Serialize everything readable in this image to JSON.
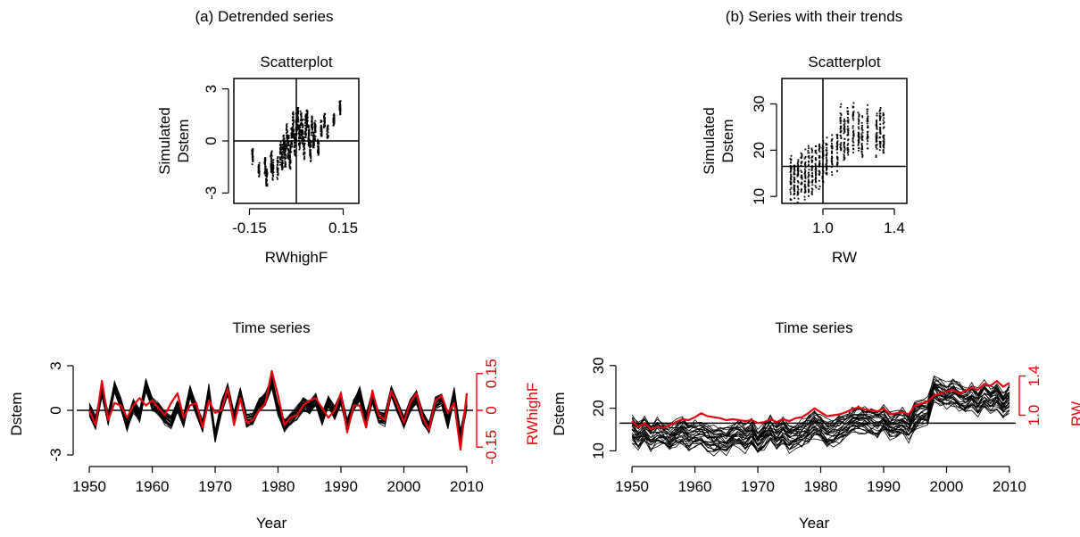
{
  "colors": {
    "simulated": "#000000",
    "observed": "#e8000b",
    "axis": "#000000"
  },
  "panel_titles": [
    "(a) Detrended series",
    "(b) Series with their trends"
  ],
  "chart_data": [
    {
      "id": "a_scatter",
      "type": "scatter",
      "title": "Scatterplot",
      "xlabel": "RWhighF",
      "ylabel_lines": [
        "Simulated",
        "Dstem"
      ],
      "xlim": [
        -0.2,
        0.2
      ],
      "ylim": [
        -3.6,
        3.6
      ],
      "xticks": [
        -0.15,
        0.15
      ],
      "xtick_labels": [
        "-0.15",
        "0.15"
      ],
      "yticks": [
        -3,
        0,
        3
      ],
      "ytick_labels": [
        "-3",
        "0",
        "3"
      ],
      "ref_lines": {
        "x": 0,
        "y": 0
      },
      "clusters": [
        {
          "x": -0.14,
          "y": -0.9,
          "range": 0.8
        },
        {
          "x": -0.12,
          "y": -1.6,
          "range": 0.8
        },
        {
          "x": -0.1,
          "y": -1.5,
          "range": 0.9
        },
        {
          "x": -0.095,
          "y": -2.1,
          "range": 0.8
        },
        {
          "x": -0.08,
          "y": -1.2,
          "range": 1.1
        },
        {
          "x": -0.075,
          "y": -1.7,
          "range": 1.0
        },
        {
          "x": -0.06,
          "y": -1.5,
          "range": 1.1
        },
        {
          "x": -0.05,
          "y": -0.6,
          "range": 1.2
        },
        {
          "x": -0.045,
          "y": -1.0,
          "range": 1.3
        },
        {
          "x": -0.04,
          "y": -0.3,
          "range": 1.2
        },
        {
          "x": -0.035,
          "y": -0.8,
          "range": 1.4
        },
        {
          "x": -0.03,
          "y": 0.3,
          "range": 1.3
        },
        {
          "x": -0.025,
          "y": -0.4,
          "range": 1.3
        },
        {
          "x": -0.02,
          "y": -1.0,
          "range": 1.4
        },
        {
          "x": -0.015,
          "y": 0.2,
          "range": 1.3
        },
        {
          "x": -0.01,
          "y": 0.9,
          "range": 1.3
        },
        {
          "x": -0.005,
          "y": -0.2,
          "range": 1.2
        },
        {
          "x": 0.0,
          "y": 0.8,
          "range": 1.4
        },
        {
          "x": 0.005,
          "y": 1.3,
          "range": 1.2
        },
        {
          "x": 0.01,
          "y": 0.3,
          "range": 1.3
        },
        {
          "x": 0.015,
          "y": 1.0,
          "range": 1.4
        },
        {
          "x": 0.02,
          "y": 0.5,
          "range": 1.3
        },
        {
          "x": 0.025,
          "y": -0.4,
          "range": 1.2
        },
        {
          "x": 0.03,
          "y": 0.8,
          "range": 1.3
        },
        {
          "x": 0.035,
          "y": 1.2,
          "range": 1.1
        },
        {
          "x": 0.04,
          "y": 0.2,
          "range": 1.2
        },
        {
          "x": 0.045,
          "y": -0.6,
          "range": 1.0
        },
        {
          "x": 0.05,
          "y": 0.9,
          "range": 1.1
        },
        {
          "x": 0.055,
          "y": 0.0,
          "range": 1.0
        },
        {
          "x": 0.06,
          "y": 0.6,
          "range": 1.0
        },
        {
          "x": 0.07,
          "y": -0.3,
          "range": 0.9
        },
        {
          "x": 0.08,
          "y": 0.7,
          "range": 0.9
        },
        {
          "x": 0.09,
          "y": 1.2,
          "range": 0.8
        },
        {
          "x": 0.1,
          "y": 0.5,
          "range": 0.7
        },
        {
          "x": 0.12,
          "y": 1.2,
          "range": 0.6
        },
        {
          "x": 0.14,
          "y": 1.9,
          "range": 0.7
        }
      ]
    },
    {
      "id": "b_scatter",
      "type": "scatter",
      "title": "Scatterplot",
      "xlabel": "RW",
      "ylabel_lines": [
        "Simulated",
        "Dstem"
      ],
      "xlim": [
        0.77,
        1.47
      ],
      "ylim": [
        8.5,
        35.5
      ],
      "xticks": [
        1.0,
        1.4
      ],
      "xtick_labels": [
        "1.0",
        "1.4"
      ],
      "yticks": [
        10,
        20,
        30
      ],
      "ytick_labels": [
        "10",
        "20",
        "30"
      ],
      "ref_lines": {
        "x": 1.0,
        "y": 16.5
      },
      "clusters": [
        {
          "x": 0.82,
          "y": 14.5,
          "range": 9
        },
        {
          "x": 0.84,
          "y": 14.0,
          "range": 8
        },
        {
          "x": 0.86,
          "y": 13.5,
          "range": 8
        },
        {
          "x": 0.88,
          "y": 15.0,
          "range": 8
        },
        {
          "x": 0.9,
          "y": 14.5,
          "range": 9
        },
        {
          "x": 0.92,
          "y": 15.5,
          "range": 9
        },
        {
          "x": 0.94,
          "y": 16.0,
          "range": 9
        },
        {
          "x": 0.96,
          "y": 16.5,
          "range": 9
        },
        {
          "x": 0.98,
          "y": 17.0,
          "range": 9
        },
        {
          "x": 1.0,
          "y": 17.5,
          "range": 9
        },
        {
          "x": 1.02,
          "y": 18.5,
          "range": 7
        },
        {
          "x": 1.05,
          "y": 19.0,
          "range": 7
        },
        {
          "x": 1.08,
          "y": 20.0,
          "range": 8
        },
        {
          "x": 1.1,
          "y": 24.5,
          "range": 9
        },
        {
          "x": 1.12,
          "y": 22.5,
          "range": 8
        },
        {
          "x": 1.14,
          "y": 24.0,
          "range": 9
        },
        {
          "x": 1.17,
          "y": 25.0,
          "range": 9
        },
        {
          "x": 1.2,
          "y": 24.0,
          "range": 8
        },
        {
          "x": 1.22,
          "y": 23.0,
          "range": 8
        },
        {
          "x": 1.25,
          "y": 25.0,
          "range": 9
        },
        {
          "x": 1.3,
          "y": 23.0,
          "range": 9
        },
        {
          "x": 1.32,
          "y": 24.5,
          "range": 9
        },
        {
          "x": 1.34,
          "y": 24.0,
          "range": 8
        }
      ]
    },
    {
      "id": "a_timeseries",
      "type": "line",
      "title": "Time series",
      "xlabel": "Year",
      "ylabel": "Dstem",
      "ylabel_right": "RWhighF",
      "xlim": [
        1948,
        2011
      ],
      "xticks": [
        1950,
        1960,
        1970,
        1980,
        1990,
        2000,
        2010
      ],
      "ylim": [
        -3.3,
        3.3
      ],
      "yticks": [
        -3,
        0,
        3
      ],
      "ytick_labels": [
        "-3",
        "0",
        "3"
      ],
      "ylim_right": [
        -0.2,
        0.2
      ],
      "yticks_right": [
        -0.15,
        0,
        0.15
      ],
      "ytick_labels_right": [
        "-0.15",
        "0",
        "0.15"
      ],
      "ref_line_y": 0,
      "years": [
        1950,
        1951,
        1952,
        1953,
        1954,
        1955,
        1956,
        1957,
        1958,
        1959,
        1960,
        1961,
        1962,
        1963,
        1964,
        1965,
        1966,
        1967,
        1968,
        1969,
        1970,
        1971,
        1972,
        1973,
        1974,
        1975,
        1976,
        1977,
        1978,
        1979,
        1980,
        1981,
        1982,
        1983,
        1984,
        1985,
        1986,
        1987,
        1988,
        1989,
        1990,
        1991,
        1992,
        1993,
        1994,
        1995,
        1996,
        1997,
        1998,
        1999,
        2000,
        2001,
        2002,
        2003,
        2004,
        2005,
        2006,
        2007,
        2008,
        2009,
        2010
      ],
      "simulated_center": [
        0.0,
        -0.8,
        1.2,
        -0.6,
        1.6,
        0.5,
        -1.0,
        0.3,
        -0.4,
        1.7,
        0.4,
        0.1,
        -0.5,
        -0.8,
        0.3,
        -0.7,
        1.2,
        0.1,
        -1.1,
        1.3,
        -1.8,
        0.2,
        1.4,
        -0.5,
        1.1,
        -0.7,
        -0.6,
        0.4,
        0.8,
        1.9,
        0.1,
        -1.0,
        -0.6,
        -0.2,
        0.4,
        0.2,
        0.7,
        -0.5,
        0.6,
        -0.2,
        0.8,
        -1.0,
        0.3,
        1.1,
        -0.7,
        0.9,
        -0.5,
        -0.6,
        1.3,
        0.2,
        -0.8,
        0.3,
        0.9,
        -0.4,
        -1.2,
        0.5,
        0.8,
        -0.8,
        1.1,
        -1.8,
        0.5
      ],
      "simulated_spread": 0.75,
      "observed": [
        0.0,
        -0.06,
        0.12,
        -0.04,
        0.03,
        0.02,
        -0.03,
        0.02,
        0.05,
        0.02,
        0.04,
        0.01,
        -0.02,
        0.03,
        0.07,
        -0.03,
        0.02,
        0.03,
        -0.07,
        0.04,
        -0.01,
        0.0,
        0.09,
        -0.06,
        0.05,
        -0.05,
        -0.04,
        0.0,
        0.03,
        0.16,
        0.06,
        -0.06,
        -0.03,
        -0.02,
        0.02,
        0.04,
        0.05,
        0.01,
        -0.03,
        0.0,
        0.07,
        -0.09,
        0.02,
        0.02,
        -0.07,
        0.08,
        -0.02,
        -0.04,
        0.08,
        0.02,
        -0.05,
        0.03,
        0.07,
        -0.03,
        -0.08,
        0.04,
        0.06,
        -0.01,
        0.03,
        -0.16,
        0.07
      ]
    },
    {
      "id": "b_timeseries",
      "type": "line",
      "title": "Time series",
      "xlabel": "Year",
      "ylabel": "Dstem",
      "ylabel_right": "RW",
      "xlim": [
        1948,
        2011
      ],
      "xticks": [
        1950,
        1960,
        1970,
        1980,
        1990,
        2000,
        2010
      ],
      "ylim": [
        8,
        31
      ],
      "yticks": [
        10,
        20,
        30
      ],
      "ytick_labels": [
        "10",
        "20",
        "30"
      ],
      "ylim_right": [
        0.55,
        1.55
      ],
      "yticks_right": [
        1.0,
        1.4
      ],
      "ytick_labels_right": [
        "1.0",
        "1.4"
      ],
      "ref_line_y": 16.5,
      "years": [
        1950,
        1951,
        1952,
        1953,
        1954,
        1955,
        1956,
        1957,
        1958,
        1959,
        1960,
        1961,
        1962,
        1963,
        1964,
        1965,
        1966,
        1967,
        1968,
        1969,
        1970,
        1971,
        1972,
        1973,
        1974,
        1975,
        1976,
        1977,
        1978,
        1979,
        1980,
        1981,
        1982,
        1983,
        1984,
        1985,
        1986,
        1987,
        1988,
        1989,
        1990,
        1991,
        1992,
        1993,
        1994,
        1995,
        1996,
        1997,
        1998,
        1999,
        2000,
        2001,
        2002,
        2003,
        2004,
        2005,
        2006,
        2007,
        2008,
        2009,
        2010
      ],
      "simulated_center": [
        15.0,
        13.5,
        15.0,
        13.2,
        14.5,
        13.8,
        13.0,
        14.2,
        14.8,
        13.5,
        13.8,
        14.0,
        13.2,
        12.5,
        12.8,
        12.2,
        13.5,
        14.0,
        13.0,
        14.2,
        12.0,
        13.5,
        15.0,
        13.2,
        14.5,
        13.0,
        13.5,
        14.0,
        15.0,
        16.5,
        15.5,
        14.0,
        14.2,
        15.2,
        16.0,
        17.0,
        17.5,
        17.2,
        16.8,
        16.5,
        17.5,
        15.8,
        16.0,
        16.8,
        15.5,
        18.2,
        19.0,
        19.5,
        24.5,
        23.5,
        22.8,
        23.5,
        22.5,
        21.8,
        23.0,
        21.5,
        23.2,
        22.0,
        23.0,
        20.8,
        22.2
      ],
      "simulated_spread": 5.5,
      "observed": [
        0.94,
        0.88,
        0.92,
        0.86,
        0.88,
        0.87,
        0.9,
        0.93,
        0.96,
        0.95,
        0.98,
        1.02,
        0.99,
        0.98,
        0.97,
        0.95,
        0.96,
        0.95,
        0.94,
        0.95,
        0.92,
        0.93,
        0.96,
        0.93,
        0.96,
        0.94,
        0.97,
        0.98,
        1.02,
        1.07,
        1.03,
        0.99,
        1.0,
        1.01,
        1.03,
        1.06,
        1.08,
        1.06,
        1.05,
        1.04,
        1.07,
        1.01,
        1.02,
        1.03,
        1.01,
        1.1,
        1.12,
        1.14,
        1.2,
        1.22,
        1.24,
        1.26,
        1.22,
        1.25,
        1.28,
        1.26,
        1.32,
        1.3,
        1.35,
        1.29,
        1.33
      ]
    }
  ]
}
